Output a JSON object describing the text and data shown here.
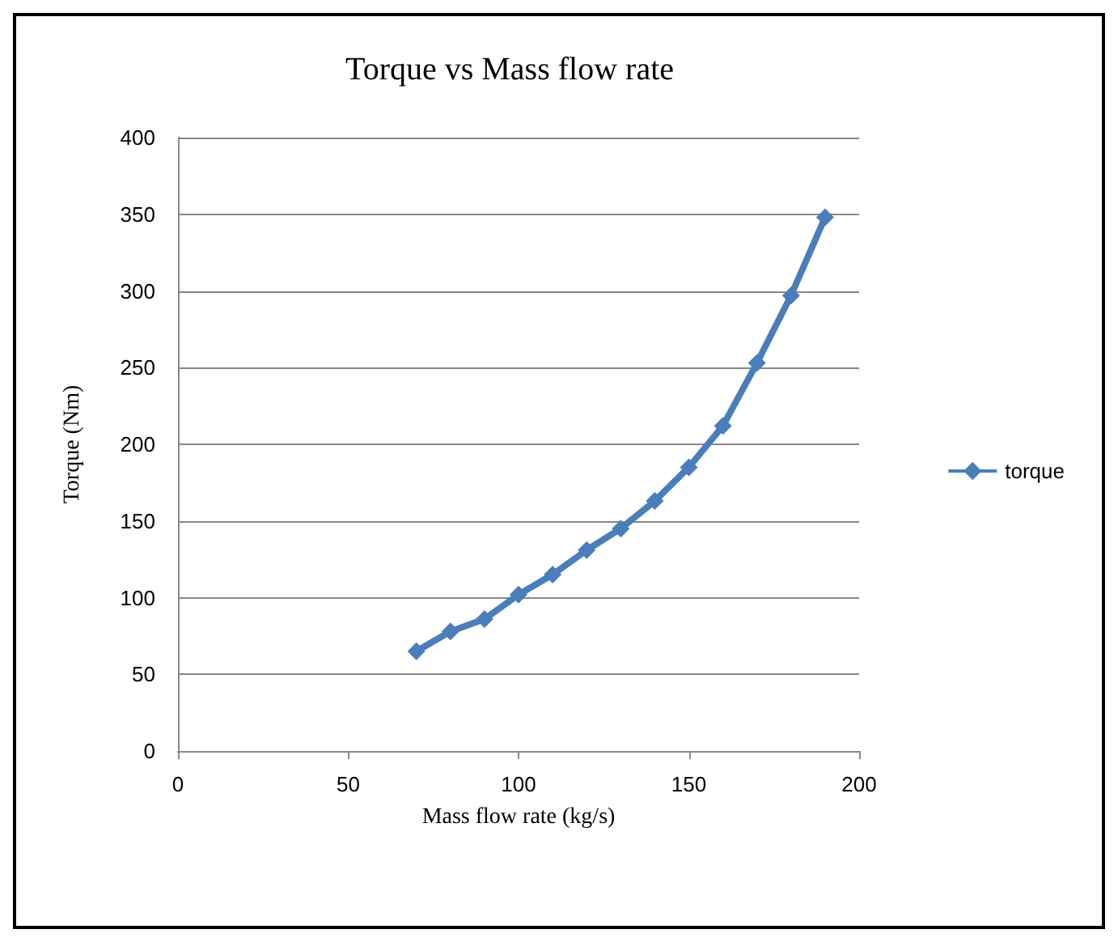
{
  "chart_data": {
    "type": "line",
    "title": "Torque vs Mass flow rate",
    "xlabel": "Mass flow rate (kg/s)",
    "ylabel": "Torque (Nm)",
    "x": [
      70,
      80,
      90,
      100,
      110,
      120,
      130,
      140,
      150,
      160,
      170,
      180,
      190
    ],
    "series": [
      {
        "name": "torque",
        "color": "#4a7ebb",
        "values": [
          65,
          78,
          86,
          102,
          115,
          131,
          145,
          163,
          185,
          212,
          253,
          297,
          348
        ]
      }
    ],
    "xlim": [
      0,
      200
    ],
    "xticks": [
      0,
      50,
      100,
      150,
      200
    ],
    "ylim": [
      0,
      400
    ],
    "yticks": [
      0,
      50,
      100,
      150,
      200,
      250,
      300,
      350,
      400
    ],
    "grid": "y",
    "legend": "right",
    "marker": "diamond",
    "line_style": "solid"
  }
}
